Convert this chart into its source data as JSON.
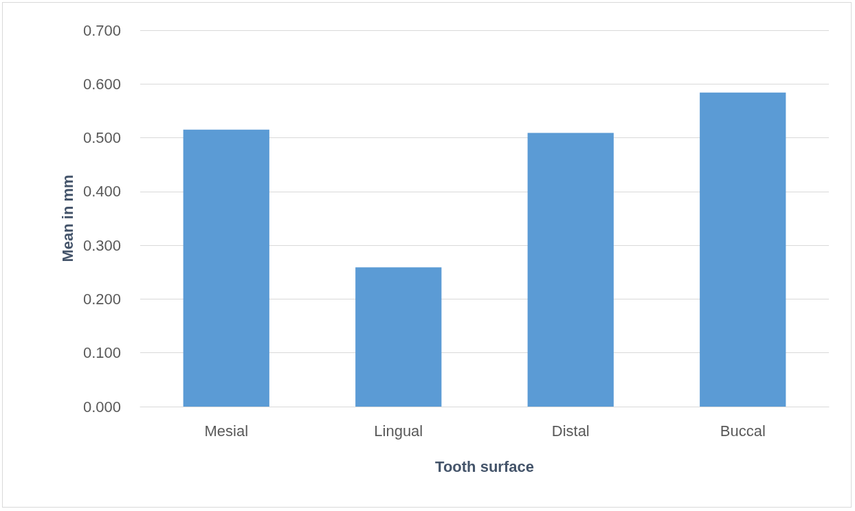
{
  "chart_data": {
    "type": "bar",
    "xlabel": "Tooth surface",
    "ylabel": "Mean in mm",
    "categories": [
      "Mesial",
      "Lingual",
      "Distal",
      "Buccal"
    ],
    "values": [
      0.515,
      0.259,
      0.509,
      0.584
    ],
    "color": "#5b9bd5",
    "ylim": [
      0,
      0.7
    ],
    "yticks": [
      {
        "value": 0,
        "label": "0.000"
      },
      {
        "value": 0.1,
        "label": "0.100"
      },
      {
        "value": 0.2,
        "label": "0.200"
      },
      {
        "value": 0.3,
        "label": "0.300"
      },
      {
        "value": 0.4,
        "label": "0.400"
      },
      {
        "value": 0.5,
        "label": "0.500"
      },
      {
        "value": 0.6,
        "label": "0.600"
      },
      {
        "value": 0.7,
        "label": "0.700"
      }
    ],
    "grid": "y"
  }
}
